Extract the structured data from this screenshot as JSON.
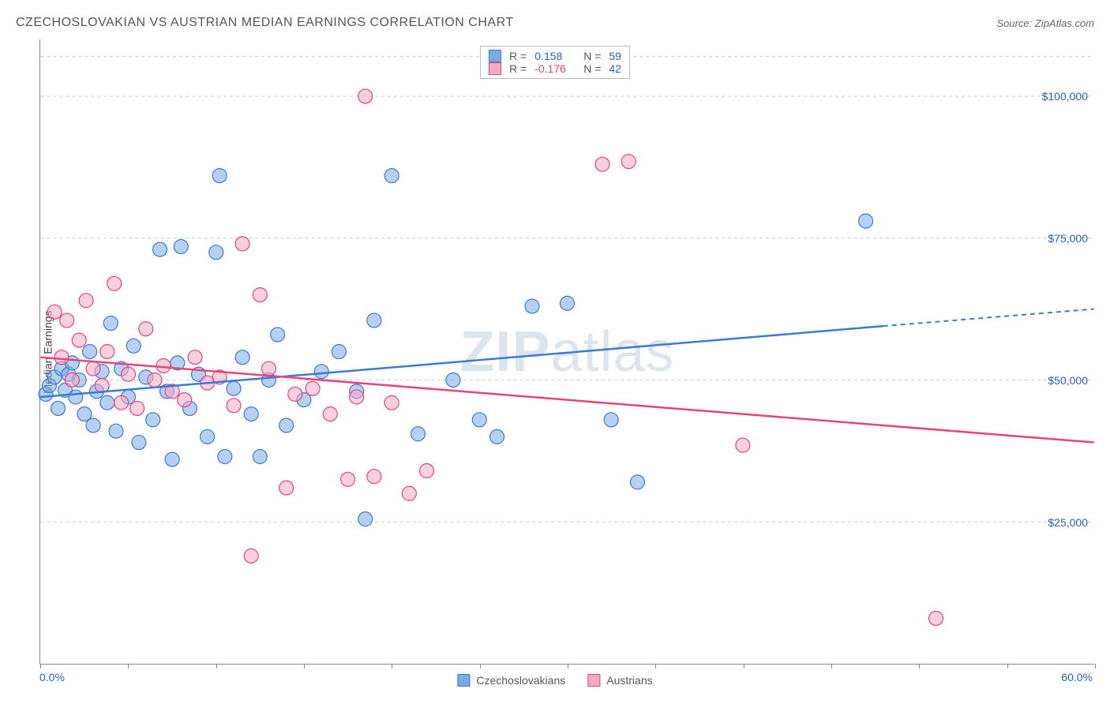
{
  "title": "CZECHOSLOVAKIAN VS AUSTRIAN MEDIAN EARNINGS CORRELATION CHART",
  "source": "Source: ZipAtlas.com",
  "watermark_bold": "ZIP",
  "watermark_rest": "atlas",
  "y_axis_label": "Median Earnings",
  "chart": {
    "type": "scatter",
    "xlim": [
      0,
      60
    ],
    "ylim": [
      0,
      110000
    ],
    "x_ticks": [
      0,
      5,
      10,
      15,
      20,
      25,
      30,
      35,
      40,
      45,
      50,
      55,
      60
    ],
    "y_gridlines": [
      25000,
      50000,
      75000,
      100000
    ],
    "y_tick_labels": [
      "$25,000",
      "$50,000",
      "$75,000",
      "$100,000"
    ],
    "x_label_min": "0.0%",
    "x_label_max": "60.0%",
    "background_color": "#ffffff",
    "grid_color": "#cccccc",
    "axis_color": "#888888",
    "marker_radius": 9,
    "marker_opacity": 0.55,
    "series": [
      {
        "name": "Czechoslovakians",
        "color_fill": "#7aa9e8",
        "color_stroke": "#3a7bd5",
        "R": 0.158,
        "N": 59,
        "trend": {
          "x1": 0,
          "y1": 47000,
          "x2": 48,
          "y2": 59500,
          "x2_dash": 60,
          "y2_dash": 62500
        },
        "points": [
          [
            0.3,
            47500
          ],
          [
            0.5,
            49000
          ],
          [
            0.8,
            50500
          ],
          [
            1.0,
            45000
          ],
          [
            1.2,
            52000
          ],
          [
            1.4,
            48200
          ],
          [
            1.6,
            51000
          ],
          [
            1.8,
            53000
          ],
          [
            2.0,
            47000
          ],
          [
            2.2,
            50000
          ],
          [
            2.5,
            44000
          ],
          [
            2.8,
            55000
          ],
          [
            3.0,
            42000
          ],
          [
            3.2,
            48000
          ],
          [
            3.5,
            51500
          ],
          [
            3.8,
            46000
          ],
          [
            4.0,
            60000
          ],
          [
            4.3,
            41000
          ],
          [
            4.6,
            52000
          ],
          [
            5.0,
            47000
          ],
          [
            5.3,
            56000
          ],
          [
            5.6,
            39000
          ],
          [
            6.0,
            50500
          ],
          [
            6.4,
            43000
          ],
          [
            6.8,
            73000
          ],
          [
            7.2,
            48000
          ],
          [
            7.5,
            36000
          ],
          [
            7.8,
            53000
          ],
          [
            8.0,
            73500
          ],
          [
            8.5,
            45000
          ],
          [
            9.0,
            51000
          ],
          [
            9.5,
            40000
          ],
          [
            10.0,
            72500
          ],
          [
            10.2,
            86000
          ],
          [
            10.5,
            36500
          ],
          [
            11.0,
            48500
          ],
          [
            11.5,
            54000
          ],
          [
            12.0,
            44000
          ],
          [
            12.5,
            36500
          ],
          [
            13.0,
            50000
          ],
          [
            13.5,
            58000
          ],
          [
            14.0,
            42000
          ],
          [
            15.0,
            46500
          ],
          [
            16.0,
            51500
          ],
          [
            17.0,
            55000
          ],
          [
            18.0,
            48000
          ],
          [
            18.5,
            25500
          ],
          [
            19.0,
            60500
          ],
          [
            20.0,
            86000
          ],
          [
            21.5,
            40500
          ],
          [
            23.5,
            50000
          ],
          [
            25.0,
            43000
          ],
          [
            26.0,
            40000
          ],
          [
            28.0,
            63000
          ],
          [
            30.0,
            63500
          ],
          [
            32.5,
            43000
          ],
          [
            34.0,
            32000
          ],
          [
            47.0,
            78000
          ]
        ]
      },
      {
        "name": "Austrians",
        "color_fill": "#f5a8c2",
        "color_stroke": "#e8447a",
        "R": -0.176,
        "N": 42,
        "trend": {
          "x1": 0,
          "y1": 54000,
          "x2": 60,
          "y2": 39000
        },
        "points": [
          [
            0.8,
            62000
          ],
          [
            1.2,
            54000
          ],
          [
            1.5,
            60500
          ],
          [
            1.8,
            50000
          ],
          [
            2.2,
            57000
          ],
          [
            2.6,
            64000
          ],
          [
            3.0,
            52000
          ],
          [
            3.5,
            49000
          ],
          [
            3.8,
            55000
          ],
          [
            4.2,
            67000
          ],
          [
            4.6,
            46000
          ],
          [
            5.0,
            51000
          ],
          [
            5.5,
            45000
          ],
          [
            6.0,
            59000
          ],
          [
            6.5,
            50000
          ],
          [
            7.0,
            52500
          ],
          [
            7.5,
            48000
          ],
          [
            8.2,
            46500
          ],
          [
            8.8,
            54000
          ],
          [
            9.5,
            49500
          ],
          [
            10.2,
            50500
          ],
          [
            11.0,
            45500
          ],
          [
            11.5,
            74000
          ],
          [
            12.0,
            19000
          ],
          [
            12.5,
            65000
          ],
          [
            13.0,
            52000
          ],
          [
            14.0,
            31000
          ],
          [
            14.5,
            47500
          ],
          [
            15.5,
            48500
          ],
          [
            16.5,
            44000
          ],
          [
            17.5,
            32500
          ],
          [
            18.0,
            47000
          ],
          [
            18.5,
            100000
          ],
          [
            19.0,
            33000
          ],
          [
            20.0,
            46000
          ],
          [
            21.0,
            30000
          ],
          [
            22.0,
            34000
          ],
          [
            32.0,
            88000
          ],
          [
            33.5,
            88500
          ],
          [
            40.0,
            38500
          ],
          [
            51.0,
            8000
          ]
        ]
      }
    ]
  },
  "legend_bottom": [
    {
      "label": "Czechoslovakians",
      "fill": "#7aa9e8",
      "stroke": "#3a7bd5"
    },
    {
      "label": "Austrians",
      "fill": "#f5a8c2",
      "stroke": "#e8447a"
    }
  ],
  "legend_box": {
    "rows": [
      {
        "swatch_fill": "#7aa9e8",
        "swatch_stroke": "#3a7bd5",
        "r": "0.158",
        "n": "59",
        "val_class": "val-blue"
      },
      {
        "swatch_fill": "#f5a8c2",
        "swatch_stroke": "#e8447a",
        "r": "-0.176",
        "n": "42",
        "val_class": "val-pink"
      }
    ]
  }
}
